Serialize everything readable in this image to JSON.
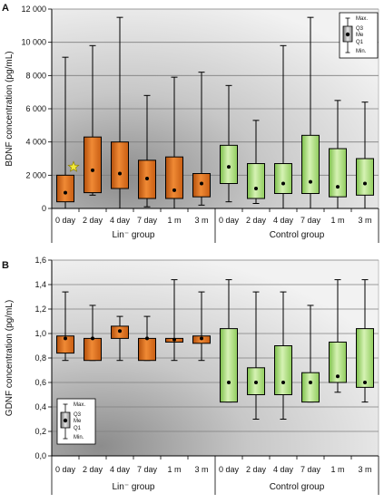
{
  "colors": {
    "lin_box": "#e4741d",
    "lin_box_dark": "#b34f0c",
    "control_box": "#b2e087",
    "control_box_dark": "#7cbf4a",
    "grid": "#7f7f7f",
    "star": "#f2e93a"
  },
  "chart_data": [
    {
      "type": "boxplot",
      "panel_label": "A",
      "ylabel": "BDNF concentration (pg/mL)",
      "ylim": [
        0,
        12000
      ],
      "yticks": [
        0,
        2000,
        4000,
        6000,
        8000,
        10000,
        12000
      ],
      "ytick_labels": [
        "0",
        "2 000",
        "4 000",
        "6 000",
        "8 000",
        "10 000",
        "12 000"
      ],
      "grid": true,
      "legend_position": "top-right",
      "legend_labels": {
        "max": "Max.",
        "q3": "Q3",
        "me": "Me",
        "q1": "Q1",
        "min": "Min."
      },
      "categories": [
        "0 day",
        "2 day",
        "4 day",
        "7 day",
        "1 m",
        "3 m",
        "0 day",
        "2 day",
        "4 day",
        "7 day",
        "1 m",
        "3 m"
      ],
      "groups": [
        {
          "label": "Lin⁻ group",
          "indices": [
            0,
            1,
            2,
            3,
            4,
            5
          ]
        },
        {
          "label": "Control group",
          "indices": [
            6,
            7,
            8,
            9,
            10,
            11
          ]
        }
      ],
      "annotations": [
        {
          "type": "star",
          "category_index": 0,
          "y": 2500
        }
      ],
      "series": [
        {
          "group": "lin",
          "boxes": [
            {
              "min": 0,
              "q1": 400,
              "median": 950,
              "q3": 2000,
              "max": 9100
            },
            {
              "min": 800,
              "q1": 950,
              "median": 2300,
              "q3": 4300,
              "max": 9800
            },
            {
              "min": 0,
              "q1": 1200,
              "median": 2100,
              "q3": 4000,
              "max": 11500
            },
            {
              "min": 100,
              "q1": 600,
              "median": 1800,
              "q3": 2900,
              "max": 6800
            },
            {
              "min": 0,
              "q1": 600,
              "median": 1100,
              "q3": 3100,
              "max": 7900
            },
            {
              "min": 200,
              "q1": 700,
              "median": 1500,
              "q3": 2100,
              "max": 8200
            }
          ]
        },
        {
          "group": "control",
          "boxes": [
            {
              "min": 400,
              "q1": 1500,
              "median": 2500,
              "q3": 3800,
              "max": 7400
            },
            {
              "min": 300,
              "q1": 600,
              "median": 1200,
              "q3": 2700,
              "max": 5300
            },
            {
              "min": 0,
              "q1": 900,
              "median": 1500,
              "q3": 2700,
              "max": 9800
            },
            {
              "min": 0,
              "q1": 900,
              "median": 1600,
              "q3": 4400,
              "max": 11500
            },
            {
              "min": 0,
              "q1": 700,
              "median": 1300,
              "q3": 3600,
              "max": 6500
            },
            {
              "min": 0,
              "q1": 800,
              "median": 1500,
              "q3": 3000,
              "max": 6400
            }
          ]
        }
      ]
    },
    {
      "type": "boxplot",
      "panel_label": "B",
      "ylabel": "GDNF concentration (pg/mL)",
      "ylim": [
        0,
        1.6
      ],
      "yticks": [
        0,
        0.2,
        0.4,
        0.6,
        0.8,
        1.0,
        1.2,
        1.4,
        1.6
      ],
      "ytick_labels": [
        "0,0",
        "0,2",
        "0,4",
        "0,6",
        "0,8",
        "1,0",
        "1,2",
        "1,4",
        "1,6"
      ],
      "grid": true,
      "legend_position": "bottom-left",
      "legend_labels": {
        "max": "Max.",
        "q3": "Q3",
        "me": "Me",
        "q1": "Q1",
        "min": "Min."
      },
      "categories": [
        "0 day",
        "2 day",
        "4 day",
        "7 day",
        "1 m",
        "3 m",
        "0 day",
        "2 day",
        "4 day",
        "7 day",
        "1 m",
        "3 m"
      ],
      "groups": [
        {
          "label": "Lin⁻ group",
          "indices": [
            0,
            1,
            2,
            3,
            4,
            5
          ]
        },
        {
          "label": "Control group",
          "indices": [
            6,
            7,
            8,
            9,
            10,
            11
          ]
        }
      ],
      "series": [
        {
          "group": "lin",
          "boxes": [
            {
              "min": 0.78,
              "q1": 0.84,
              "median": 0.96,
              "q3": 0.98,
              "max": 1.34
            },
            {
              "min": 0.78,
              "q1": 0.78,
              "median": 0.96,
              "q3": 0.96,
              "max": 1.23
            },
            {
              "min": 0.78,
              "q1": 0.96,
              "median": 1.02,
              "q3": 1.06,
              "max": 1.14
            },
            {
              "min": 0.78,
              "q1": 0.78,
              "median": 0.96,
              "q3": 0.96,
              "max": 1.14
            },
            {
              "min": 0.78,
              "q1": 0.93,
              "median": 0.95,
              "q3": 0.96,
              "max": 1.44
            },
            {
              "min": 0.78,
              "q1": 0.92,
              "median": 0.96,
              "q3": 0.98,
              "max": 1.34
            }
          ]
        },
        {
          "group": "control",
          "boxes": [
            {
              "min": 0.44,
              "q1": 0.44,
              "median": 0.6,
              "q3": 1.04,
              "max": 1.44
            },
            {
              "min": 0.3,
              "q1": 0.5,
              "median": 0.6,
              "q3": 0.72,
              "max": 1.34
            },
            {
              "min": 0.3,
              "q1": 0.5,
              "median": 0.6,
              "q3": 0.9,
              "max": 1.34
            },
            {
              "min": 0.44,
              "q1": 0.44,
              "median": 0.6,
              "q3": 0.68,
              "max": 1.23
            },
            {
              "min": 0.52,
              "q1": 0.6,
              "median": 0.65,
              "q3": 0.93,
              "max": 1.44
            },
            {
              "min": 0.44,
              "q1": 0.56,
              "median": 0.6,
              "q3": 1.04,
              "max": 1.44
            }
          ]
        }
      ]
    }
  ]
}
